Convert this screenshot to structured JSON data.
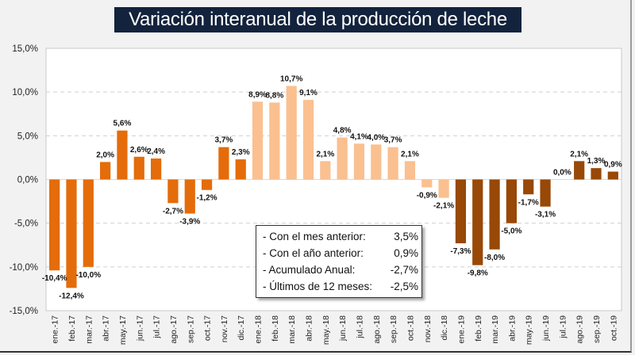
{
  "chart_data": {
    "type": "bar",
    "title": "Variación interanual de la producción de leche",
    "xlabel": "",
    "ylabel": "",
    "ylim": [
      -15,
      15
    ],
    "yticks": [
      15,
      10,
      5,
      0,
      -5,
      -10,
      -15
    ],
    "ytick_labels": [
      "15,0%",
      "10,0%",
      "5,0%",
      "0,0%",
      "-5,0%",
      "-10,0%",
      "-15,0%"
    ],
    "grid": true,
    "categories": [
      "ene.-17",
      "feb.-17",
      "mar.-17",
      "abr.-17",
      "may.-17",
      "jun.-17",
      "jul.-17",
      "ago.-17",
      "sep.-17",
      "oct.-17",
      "nov.-17",
      "dic.-17",
      "ene.-18",
      "feb.-18",
      "mar.-18",
      "abr.-18",
      "may.-18",
      "jun.-18",
      "jul.-18",
      "ago.-18",
      "sep.-18",
      "oct.-18",
      "nov.-18",
      "dic.-18",
      "ene.-19",
      "feb.-19",
      "mar.-19",
      "abr.-19",
      "may.-19",
      "jun.-19",
      "jul.-19",
      "ago.-19",
      "sep.-19",
      "oct.-19"
    ],
    "values": [
      -10.4,
      -12.4,
      -10.0,
      2.0,
      5.6,
      2.6,
      2.4,
      -2.7,
      -3.9,
      -1.2,
      3.7,
      2.3,
      8.9,
      8.8,
      10.7,
      9.1,
      2.1,
      4.8,
      4.1,
      4.0,
      3.7,
      2.1,
      -0.9,
      -2.1,
      -7.3,
      -9.8,
      -8.0,
      -5.0,
      -1.7,
      -3.1,
      0.0,
      2.1,
      1.3,
      0.9
    ],
    "data_labels": [
      "-10,4%",
      "-12,4%",
      "-10,0%",
      "2,0%",
      "5,6%",
      "2,6%",
      "2,4%",
      "-2,7%",
      "-3,9%",
      "-1,2%",
      "3,7%",
      "2,3%",
      "8,9%",
      "8,8%",
      "10,7%",
      "9,1%",
      "2,1%",
      "4,8%",
      "4,1%",
      "4,0%",
      "3,7%",
      "2,1%",
      "-0,9%",
      "-2,1%",
      "-7,3%",
      "-9,8%",
      "-8,0%",
      "-5,0%",
      "-1,7%",
      "-3,1%",
      "0,0%",
      "2,1%",
      "1,3%",
      "0,9%"
    ],
    "series_colors": {
      "2017": "#e46c0a",
      "2018": "#fac090",
      "2019": "#984807"
    }
  },
  "summary": [
    {
      "label": "- Con el mes anterior:",
      "value": "3,5%"
    },
    {
      "label": "- Con el año anterior:",
      "value": "0,9%"
    },
    {
      "label": "- Acumulado Anual:",
      "value": "-2,7%"
    },
    {
      "label": "- Últimos de 12 meses:",
      "value": "-2,5%"
    }
  ]
}
